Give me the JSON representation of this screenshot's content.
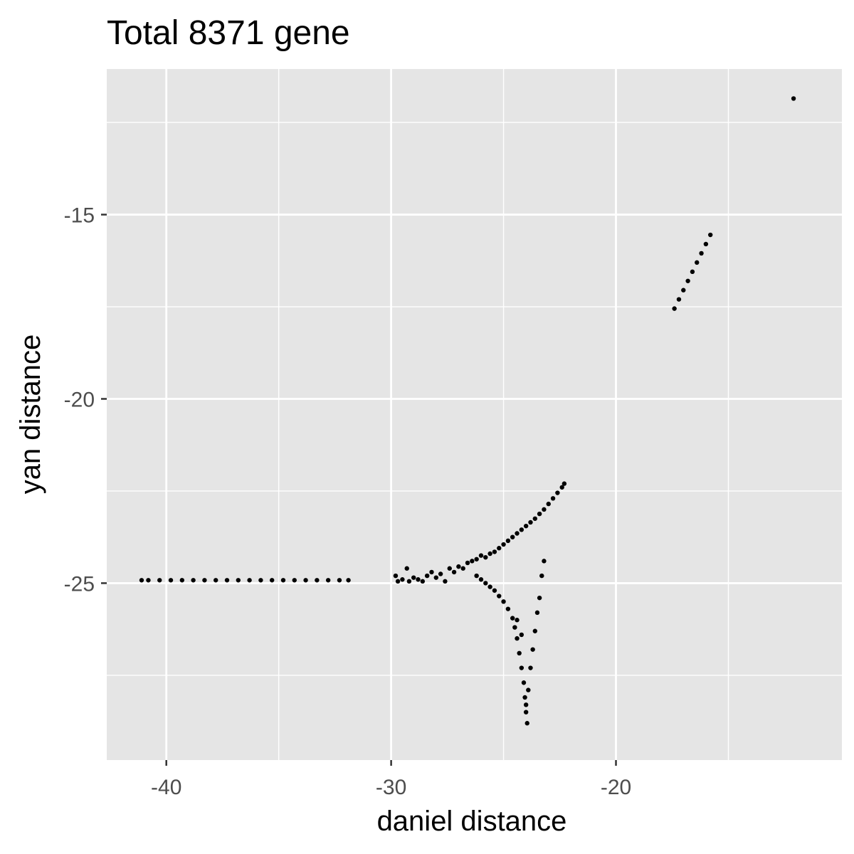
{
  "chart_data": {
    "type": "scatter",
    "title": "Total 8371 gene",
    "xlabel": "daniel distance",
    "ylabel": "yan distance",
    "xlim": [
      -42.65,
      -9.95
    ],
    "ylim": [
      -29.8,
      -11.05
    ],
    "x_ticks": [
      -40,
      -30,
      -20
    ],
    "y_ticks": [
      -15,
      -20,
      -25
    ],
    "x_tick_labels": [
      "-40",
      "-30",
      "-20"
    ],
    "y_tick_labels": [
      "-15",
      "-20",
      "-25"
    ],
    "grid": true,
    "legend": "none",
    "colors": {
      "panel": "#e5e5e5",
      "grid": "#ffffff",
      "point": "#000000",
      "tick_text": "#4d4d4d",
      "tick_mark": "#333333"
    },
    "series": [
      {
        "points": [
          [
            -41.1,
            -24.92
          ],
          [
            -40.8,
            -24.92
          ],
          [
            -40.3,
            -24.92
          ],
          [
            -39.8,
            -24.92
          ],
          [
            -39.3,
            -24.92
          ],
          [
            -38.8,
            -24.92
          ],
          [
            -38.3,
            -24.92
          ],
          [
            -37.8,
            -24.92
          ],
          [
            -37.3,
            -24.92
          ],
          [
            -36.8,
            -24.92
          ],
          [
            -36.3,
            -24.92
          ],
          [
            -35.8,
            -24.92
          ],
          [
            -35.3,
            -24.92
          ],
          [
            -34.8,
            -24.92
          ],
          [
            -34.3,
            -24.92
          ],
          [
            -33.8,
            -24.92
          ],
          [
            -33.3,
            -24.92
          ],
          [
            -32.8,
            -24.92
          ],
          [
            -32.3,
            -24.92
          ],
          [
            -31.9,
            -24.92
          ],
          [
            -29.8,
            -24.8
          ],
          [
            -29.7,
            -24.95
          ],
          [
            -29.5,
            -24.9
          ],
          [
            -29.3,
            -24.6
          ],
          [
            -29.2,
            -24.95
          ],
          [
            -29.0,
            -24.85
          ],
          [
            -28.8,
            -24.9
          ],
          [
            -28.6,
            -24.95
          ],
          [
            -28.4,
            -24.8
          ],
          [
            -28.2,
            -24.7
          ],
          [
            -28.0,
            -24.85
          ],
          [
            -27.8,
            -24.75
          ],
          [
            -27.6,
            -24.95
          ],
          [
            -27.4,
            -24.6
          ],
          [
            -27.2,
            -24.7
          ],
          [
            -27.0,
            -24.55
          ],
          [
            -26.8,
            -24.6
          ],
          [
            -26.6,
            -24.45
          ],
          [
            -26.4,
            -24.4
          ],
          [
            -26.2,
            -24.35
          ],
          [
            -26.0,
            -24.25
          ],
          [
            -25.8,
            -24.3
          ],
          [
            -25.6,
            -24.2
          ],
          [
            -25.4,
            -24.15
          ],
          [
            -25.2,
            -24.05
          ],
          [
            -25.0,
            -23.95
          ],
          [
            -24.8,
            -23.85
          ],
          [
            -24.6,
            -23.75
          ],
          [
            -24.4,
            -23.65
          ],
          [
            -24.2,
            -23.55
          ],
          [
            -24.0,
            -23.45
          ],
          [
            -23.8,
            -23.35
          ],
          [
            -23.6,
            -23.25
          ],
          [
            -23.4,
            -23.12
          ],
          [
            -23.2,
            -23.0
          ],
          [
            -23.0,
            -22.85
          ],
          [
            -22.8,
            -22.7
          ],
          [
            -22.6,
            -22.55
          ],
          [
            -22.4,
            -22.4
          ],
          [
            -22.3,
            -22.3
          ],
          [
            -26.2,
            -24.8
          ],
          [
            -26.0,
            -24.9
          ],
          [
            -25.8,
            -25.0
          ],
          [
            -25.6,
            -25.1
          ],
          [
            -25.4,
            -25.2
          ],
          [
            -25.2,
            -25.35
          ],
          [
            -25.0,
            -25.5
          ],
          [
            -24.8,
            -25.7
          ],
          [
            -24.6,
            -25.95
          ],
          [
            -24.5,
            -26.2
          ],
          [
            -24.4,
            -26.5
          ],
          [
            -24.3,
            -26.9
          ],
          [
            -24.2,
            -27.3
          ],
          [
            -24.1,
            -27.7
          ],
          [
            -24.05,
            -28.1
          ],
          [
            -24.0,
            -28.5
          ],
          [
            -23.95,
            -28.8
          ],
          [
            -24.4,
            -26.0
          ],
          [
            -24.2,
            -26.4
          ],
          [
            -24.0,
            -28.3
          ],
          [
            -23.9,
            -27.9
          ],
          [
            -23.8,
            -27.3
          ],
          [
            -23.7,
            -26.8
          ],
          [
            -23.6,
            -26.3
          ],
          [
            -23.5,
            -25.8
          ],
          [
            -23.4,
            -25.4
          ],
          [
            -23.3,
            -24.8
          ],
          [
            -23.2,
            -24.4
          ],
          [
            -17.4,
            -17.55
          ],
          [
            -17.2,
            -17.3
          ],
          [
            -17.0,
            -17.05
          ],
          [
            -16.8,
            -16.8
          ],
          [
            -16.6,
            -16.55
          ],
          [
            -16.4,
            -16.3
          ],
          [
            -16.2,
            -16.05
          ],
          [
            -16.0,
            -15.8
          ],
          [
            -15.8,
            -15.55
          ],
          [
            -12.1,
            -11.85
          ]
        ]
      }
    ]
  }
}
